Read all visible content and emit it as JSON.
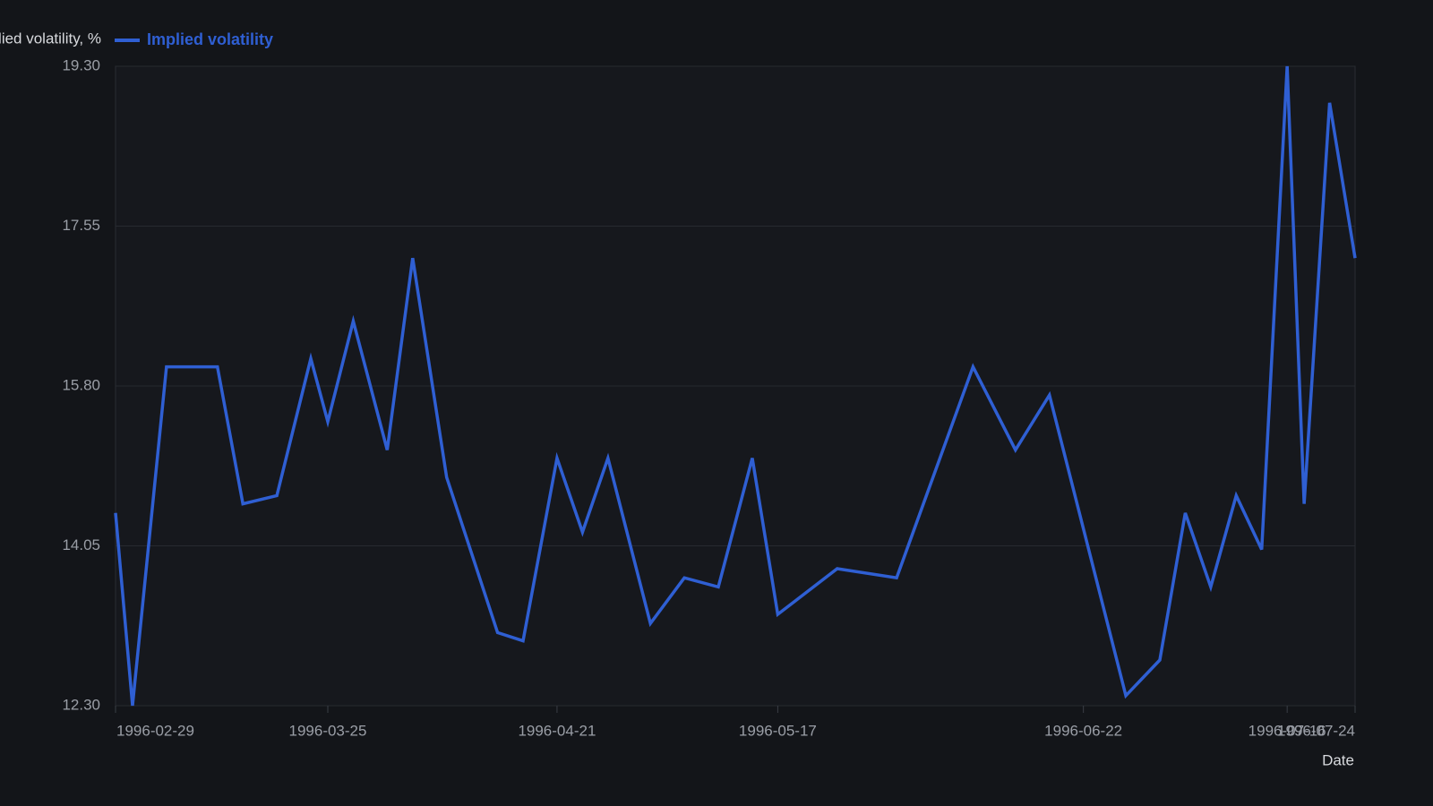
{
  "chart_data": {
    "type": "line",
    "x_label": "Date",
    "y_label": "Implied volatility, %",
    "x": [
      "1996-02-29",
      "1996-03-02",
      "1996-03-06",
      "1996-03-12",
      "1996-03-15",
      "1996-03-19",
      "1996-03-23",
      "1996-03-25",
      "1996-03-28",
      "1996-04-01",
      "1996-04-04",
      "1996-04-08",
      "1996-04-14",
      "1996-04-17",
      "1996-04-21",
      "1996-04-24",
      "1996-04-27",
      "1996-05-02",
      "1996-05-06",
      "1996-05-10",
      "1996-05-14",
      "1996-05-17",
      "1996-05-24",
      "1996-05-31",
      "1996-06-09",
      "1996-06-14",
      "1996-06-18",
      "1996-06-27",
      "1996-07-01",
      "1996-07-04",
      "1996-07-07",
      "1996-07-10",
      "1996-07-13",
      "1996-07-16",
      "1996-07-18",
      "1996-07-21",
      "1996-07-24"
    ],
    "series": [
      {
        "name": "Implied volatility",
        "color": "#2f5fd3",
        "values": [
          14.41,
          12.3,
          16.01,
          16.01,
          14.51,
          14.6,
          16.1,
          15.41,
          16.51,
          15.1,
          17.2,
          14.8,
          13.1,
          13.01,
          15.01,
          14.2,
          15.01,
          13.2,
          13.7,
          13.6,
          15.01,
          13.3,
          13.8,
          13.7,
          16.01,
          15.1,
          15.7,
          12.41,
          12.8,
          14.41,
          13.6,
          14.6,
          14.01,
          19.3,
          14.51,
          18.9,
          17.2
        ]
      }
    ],
    "xlim": [
      "1996-02-29",
      "1996-07-24"
    ],
    "xticks": [
      "1996-02-29",
      "1996-03-25",
      "1996-04-21",
      "1996-05-17",
      "1996-06-22",
      "1996-07-16",
      "1996-07-24"
    ],
    "ylim": [
      12.3,
      19.3
    ],
    "yticks": [
      {
        "value": 12.3,
        "label": "12.30"
      },
      {
        "value": 14.05,
        "label": "14.05"
      },
      {
        "value": 15.8,
        "label": "15.80"
      },
      {
        "value": 17.55,
        "label": "17.55"
      },
      {
        "value": 19.3,
        "label": "19.30"
      }
    ],
    "grid": true
  }
}
